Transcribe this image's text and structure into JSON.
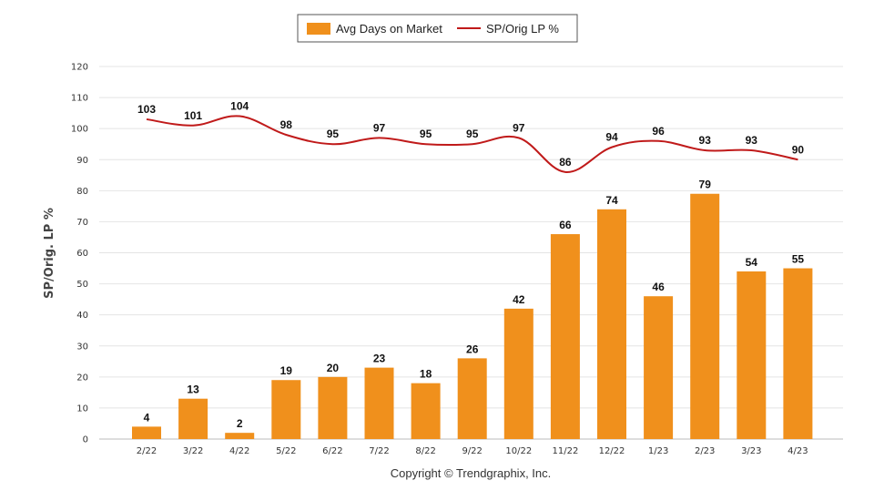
{
  "chart_data": {
    "type": "bar+line",
    "categories": [
      "2/22",
      "3/22",
      "4/22",
      "5/22",
      "6/22",
      "7/22",
      "8/22",
      "9/22",
      "10/22",
      "11/22",
      "12/22",
      "1/23",
      "2/23",
      "3/23",
      "4/23"
    ],
    "series": [
      {
        "name": "Avg Days on Market",
        "type": "bar",
        "color": "#f0901c",
        "values": [
          4,
          13,
          2,
          19,
          20,
          23,
          18,
          26,
          42,
          66,
          74,
          46,
          79,
          54,
          55
        ]
      },
      {
        "name": "SP/Orig LP %",
        "type": "line",
        "color": "#c01a1a",
        "values": [
          103,
          101,
          104,
          98,
          95,
          97,
          95,
          95,
          97,
          86,
          94,
          96,
          93,
          93,
          90
        ]
      }
    ],
    "ylabel": "SP/Orig. LP %",
    "ylim": [
      0,
      120
    ],
    "yticks": [
      0,
      10,
      20,
      30,
      40,
      50,
      60,
      70,
      80,
      90,
      100,
      110,
      120
    ],
    "grid": true,
    "legend_position": "top-center"
  },
  "footer": "Copyright © Trendgraphix, Inc."
}
